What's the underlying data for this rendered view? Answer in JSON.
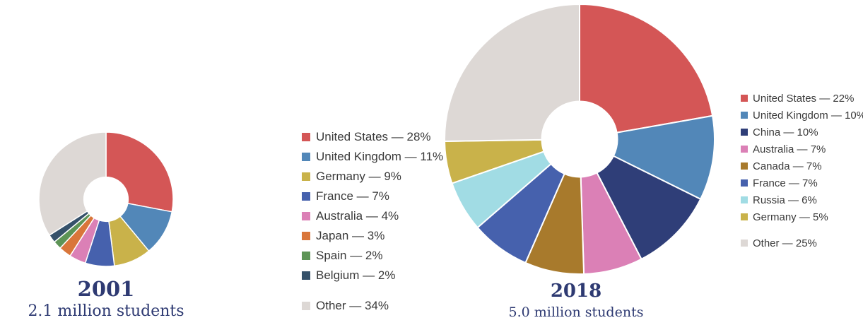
{
  "chart_data": [
    {
      "type": "pie",
      "title": "2001",
      "subtitle": "2.1 million students",
      "slices": [
        {
          "label": "United States",
          "value": 28,
          "color": "#d45656",
          "legend_text": "United States — 28%"
        },
        {
          "label": "United Kingdom",
          "value": 11,
          "color": "#5287b8",
          "legend_text": "United Kingdom — 11%"
        },
        {
          "label": "Germany",
          "value": 9,
          "color": "#c9b24a",
          "legend_text": "Germany — 9%"
        },
        {
          "label": "France",
          "value": 7,
          "color": "#4661ad",
          "legend_text": "France — 7%"
        },
        {
          "label": "Australia",
          "value": 4,
          "color": "#db80b6",
          "legend_text": "Australia — 4%"
        },
        {
          "label": "Japan",
          "value": 3,
          "color": "#d9763a",
          "legend_text": "Japan — 3%"
        },
        {
          "label": "Spain",
          "value": 2,
          "color": "#5d9456",
          "legend_text": "Spain — 2%"
        },
        {
          "label": "Belgium",
          "value": 2,
          "color": "#35516a",
          "legend_text": "Belgium — 2%"
        },
        {
          "label": "Other",
          "value": 34,
          "color": "#ddd8d5",
          "legend_text": "Other — 34%"
        }
      ]
    },
    {
      "type": "pie",
      "title": "2018",
      "subtitle": "5.0 million students",
      "slices": [
        {
          "label": "United States",
          "value": 22,
          "color": "#d45656",
          "legend_text": "United States — 22%"
        },
        {
          "label": "United Kingdom",
          "value": 10,
          "color": "#5287b8",
          "legend_text": "United Kingdom — 10%"
        },
        {
          "label": "China",
          "value": 10,
          "color": "#2f3e78",
          "legend_text": "China — 10%"
        },
        {
          "label": "Australia",
          "value": 7,
          "color": "#db80b6",
          "legend_text": "Australia — 7%"
        },
        {
          "label": "Canada",
          "value": 7,
          "color": "#a87a2c",
          "legend_text": "Canada — 7%"
        },
        {
          "label": "France",
          "value": 7,
          "color": "#4661ad",
          "legend_text": "France — 7%"
        },
        {
          "label": "Russia",
          "value": 6,
          "color": "#a1dce4",
          "legend_text": "Russia — 6%"
        },
        {
          "label": "Germany",
          "value": 5,
          "color": "#c9b24a",
          "legend_text": "Germany — 5%"
        },
        {
          "label": "Other",
          "value": 25,
          "color": "#ddd8d5",
          "legend_text": "Other — 25%"
        }
      ]
    }
  ]
}
